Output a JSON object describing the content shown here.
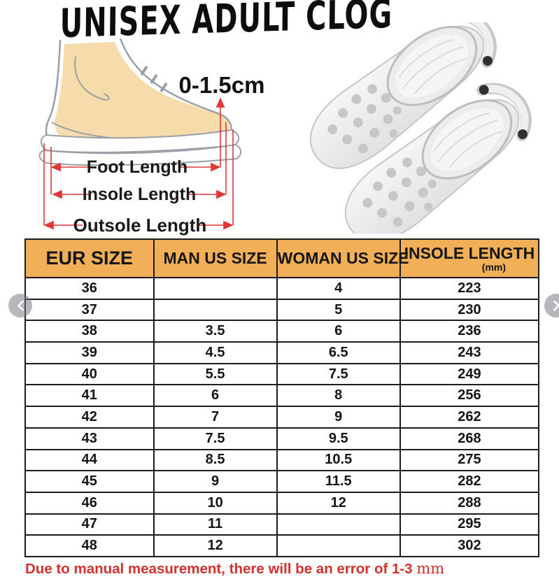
{
  "title": "UNISEX ADULT CLOG",
  "diagram": {
    "tolerance": "0-1.5cm",
    "foot_length": "Foot Length",
    "insole_length": "Insole Length",
    "outsole_length": "Outsole Length"
  },
  "size_table": {
    "headers": {
      "eur": "EUR SIZE",
      "man": "MAN US SIZE",
      "woman": "WOMAN US SIZE",
      "insole": "INSOLE LENGTH",
      "insole_unit": "(mm)"
    },
    "rows": [
      {
        "eur": "36",
        "man": "",
        "woman": "4",
        "insole": "223"
      },
      {
        "eur": "37",
        "man": "",
        "woman": "5",
        "insole": "230"
      },
      {
        "eur": "38",
        "man": "3.5",
        "woman": "6",
        "insole": "236"
      },
      {
        "eur": "39",
        "man": "4.5",
        "woman": "6.5",
        "insole": "243"
      },
      {
        "eur": "40",
        "man": "5.5",
        "woman": "7.5",
        "insole": "249"
      },
      {
        "eur": "41",
        "man": "6",
        "woman": "8",
        "insole": "256"
      },
      {
        "eur": "42",
        "man": "7",
        "woman": "9",
        "insole": "262"
      },
      {
        "eur": "43",
        "man": "7.5",
        "woman": "9.5",
        "insole": "268"
      },
      {
        "eur": "44",
        "man": "8.5",
        "woman": "10.5",
        "insole": "275"
      },
      {
        "eur": "45",
        "man": "9",
        "woman": "11.5",
        "insole": "282"
      },
      {
        "eur": "46",
        "man": "10",
        "woman": "12",
        "insole": "288"
      },
      {
        "eur": "47",
        "man": "11",
        "woman": "",
        "insole": "295"
      },
      {
        "eur": "48",
        "man": "12",
        "woman": "",
        "insole": "302"
      }
    ]
  },
  "note": {
    "text": "Due to manual measurement, there will be an error of 1-3 ",
    "unit": "mm"
  },
  "icons": {
    "prev": "chevron-left",
    "next": "chevron-right"
  },
  "colors": {
    "header_bg": "#f1b057",
    "table_border": "#1c1c1c",
    "note_red": "#d3312c",
    "dimension_red": "#e03838",
    "skin": "#f6dcaa",
    "outline_gray": "#9aa0a6",
    "clog_body": "#ededed"
  }
}
